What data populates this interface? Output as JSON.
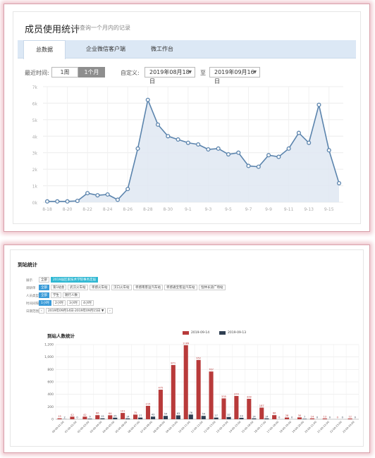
{
  "panel1": {
    "title": "成员使用统计",
    "subtitle": "可查询一个月内的记录",
    "tabs": [
      {
        "label": "总数据",
        "active": true
      },
      {
        "label": "企业微信客户端",
        "active": false
      },
      {
        "label": "微工作台",
        "active": false
      }
    ],
    "filters": {
      "recent_label": "最近时间:",
      "options": [
        {
          "label": "1周",
          "active": false
        },
        {
          "label": "1个月",
          "active": true
        }
      ],
      "custom_label": "自定义:",
      "start_date": "2019年08月18日",
      "to_label": "至",
      "end_date": "2019年09月16日"
    },
    "chart_data": {
      "type": "area",
      "y_ticks": [
        "0k",
        "1k",
        "2k",
        "3k",
        "4k",
        "5k",
        "6k",
        "7k"
      ],
      "ylim": [
        0,
        7000
      ],
      "x_tick_labels": [
        "8-18",
        "8-20",
        "8-22",
        "8-24",
        "8-26",
        "8-28",
        "8-30",
        "9-1",
        "9-3",
        "9-5",
        "9-7",
        "9-9",
        "9-11",
        "9-13",
        "9-15"
      ],
      "values": [
        50,
        50,
        50,
        80,
        550,
        420,
        470,
        150,
        800,
        3250,
        6200,
        4700,
        4000,
        3800,
        3600,
        3500,
        3200,
        3250,
        2900,
        3000,
        2200,
        2150,
        2850,
        2750,
        3250,
        4200,
        3600,
        5900,
        3150,
        1150
      ],
      "grid": true,
      "color": "#5b84ad"
    }
  },
  "panel2": {
    "title": "到站统计",
    "filter_rows": [
      {
        "label": "展示",
        "chips": [
          {
            "text": "全部",
            "style": "plain"
          },
          {
            "text": "2019届区家技术学院事务定届",
            "style": "cyan"
          }
        ]
      },
      {
        "label": "调研单",
        "chips": [
          {
            "text": "全部",
            "style": "on"
          },
          {
            "text": "第1站会",
            "style": "plain"
          },
          {
            "text": "武汉火车站",
            "style": "plain"
          },
          {
            "text": "孝感火车站",
            "style": "plain"
          },
          {
            "text": "汉口火车站",
            "style": "plain"
          },
          {
            "text": "孝感南客运汽车站",
            "style": "plain"
          },
          {
            "text": "孝感通宝客运汽车站",
            "style": "plain"
          },
          {
            "text": "恒林长途广场站",
            "style": "plain"
          }
        ]
      },
      {
        "label": "人员类型",
        "chips": [
          {
            "text": "全部",
            "style": "on"
          },
          {
            "text": "学生",
            "style": "plain"
          },
          {
            "text": "随行人数",
            "style": "plain"
          }
        ]
      },
      {
        "label": "时间间隔",
        "chips": [
          {
            "text": "1小时",
            "style": "on"
          },
          {
            "text": "2小时",
            "style": "plain"
          },
          {
            "text": "3小时",
            "style": "plain"
          },
          {
            "text": "4小时",
            "style": "plain"
          }
        ]
      },
      {
        "label": "日期范围",
        "chips": [
          {
            "text": "‹",
            "style": "plain"
          },
          {
            "text": "2019年09月14日-2019年09月15日 ▼",
            "style": "plain"
          },
          {
            "text": "›",
            "style": "plain"
          }
        ]
      }
    ],
    "chart_data": {
      "type": "bar",
      "title": "到站人数统计",
      "categories": [
        "00:00-01:00",
        "01:00-02:00",
        "02:00-03:00",
        "03:00-04:00",
        "04:00-05:00",
        "05:00-06:00",
        "06:00-07:00",
        "07:00-08:00",
        "08:00-09:00",
        "09:00-10:00",
        "10:00-11:00",
        "11:00-12:00",
        "12:00-13:00",
        "13:00-14:00",
        "14:00-15:00",
        "15:00-16:00",
        "16:00-17:00",
        "17:00-18:00",
        "18:00-19:00",
        "19:00-20:00",
        "20:00-21:00",
        "21:00-22:00",
        "22:00-23:00",
        "23:00-24:00"
      ],
      "series": [
        {
          "name": "2019-09-14",
          "color": "#b83a3a",
          "values": [
            15,
            42,
            42,
            66,
            64,
            101,
            75,
            215,
            475,
            871,
            1189,
            952,
            767,
            335,
            374,
            328,
            187,
            66,
            28,
            30,
            14,
            13,
            0,
            12
          ]
        },
        {
          "name": "2019-09-13",
          "color": "#2f3f52",
          "values": [
            2,
            0,
            9,
            15,
            25,
            14,
            27,
            43,
            54,
            63,
            76,
            54,
            27,
            37,
            23,
            14,
            14,
            0,
            0,
            7,
            0,
            0,
            0,
            0
          ]
        }
      ],
      "y_ticks": [
        "0",
        "200",
        "400",
        "600",
        "800",
        "1,000",
        "1,200"
      ],
      "ylim": [
        0,
        1200
      ],
      "grid": true,
      "legend": "top-right"
    }
  }
}
